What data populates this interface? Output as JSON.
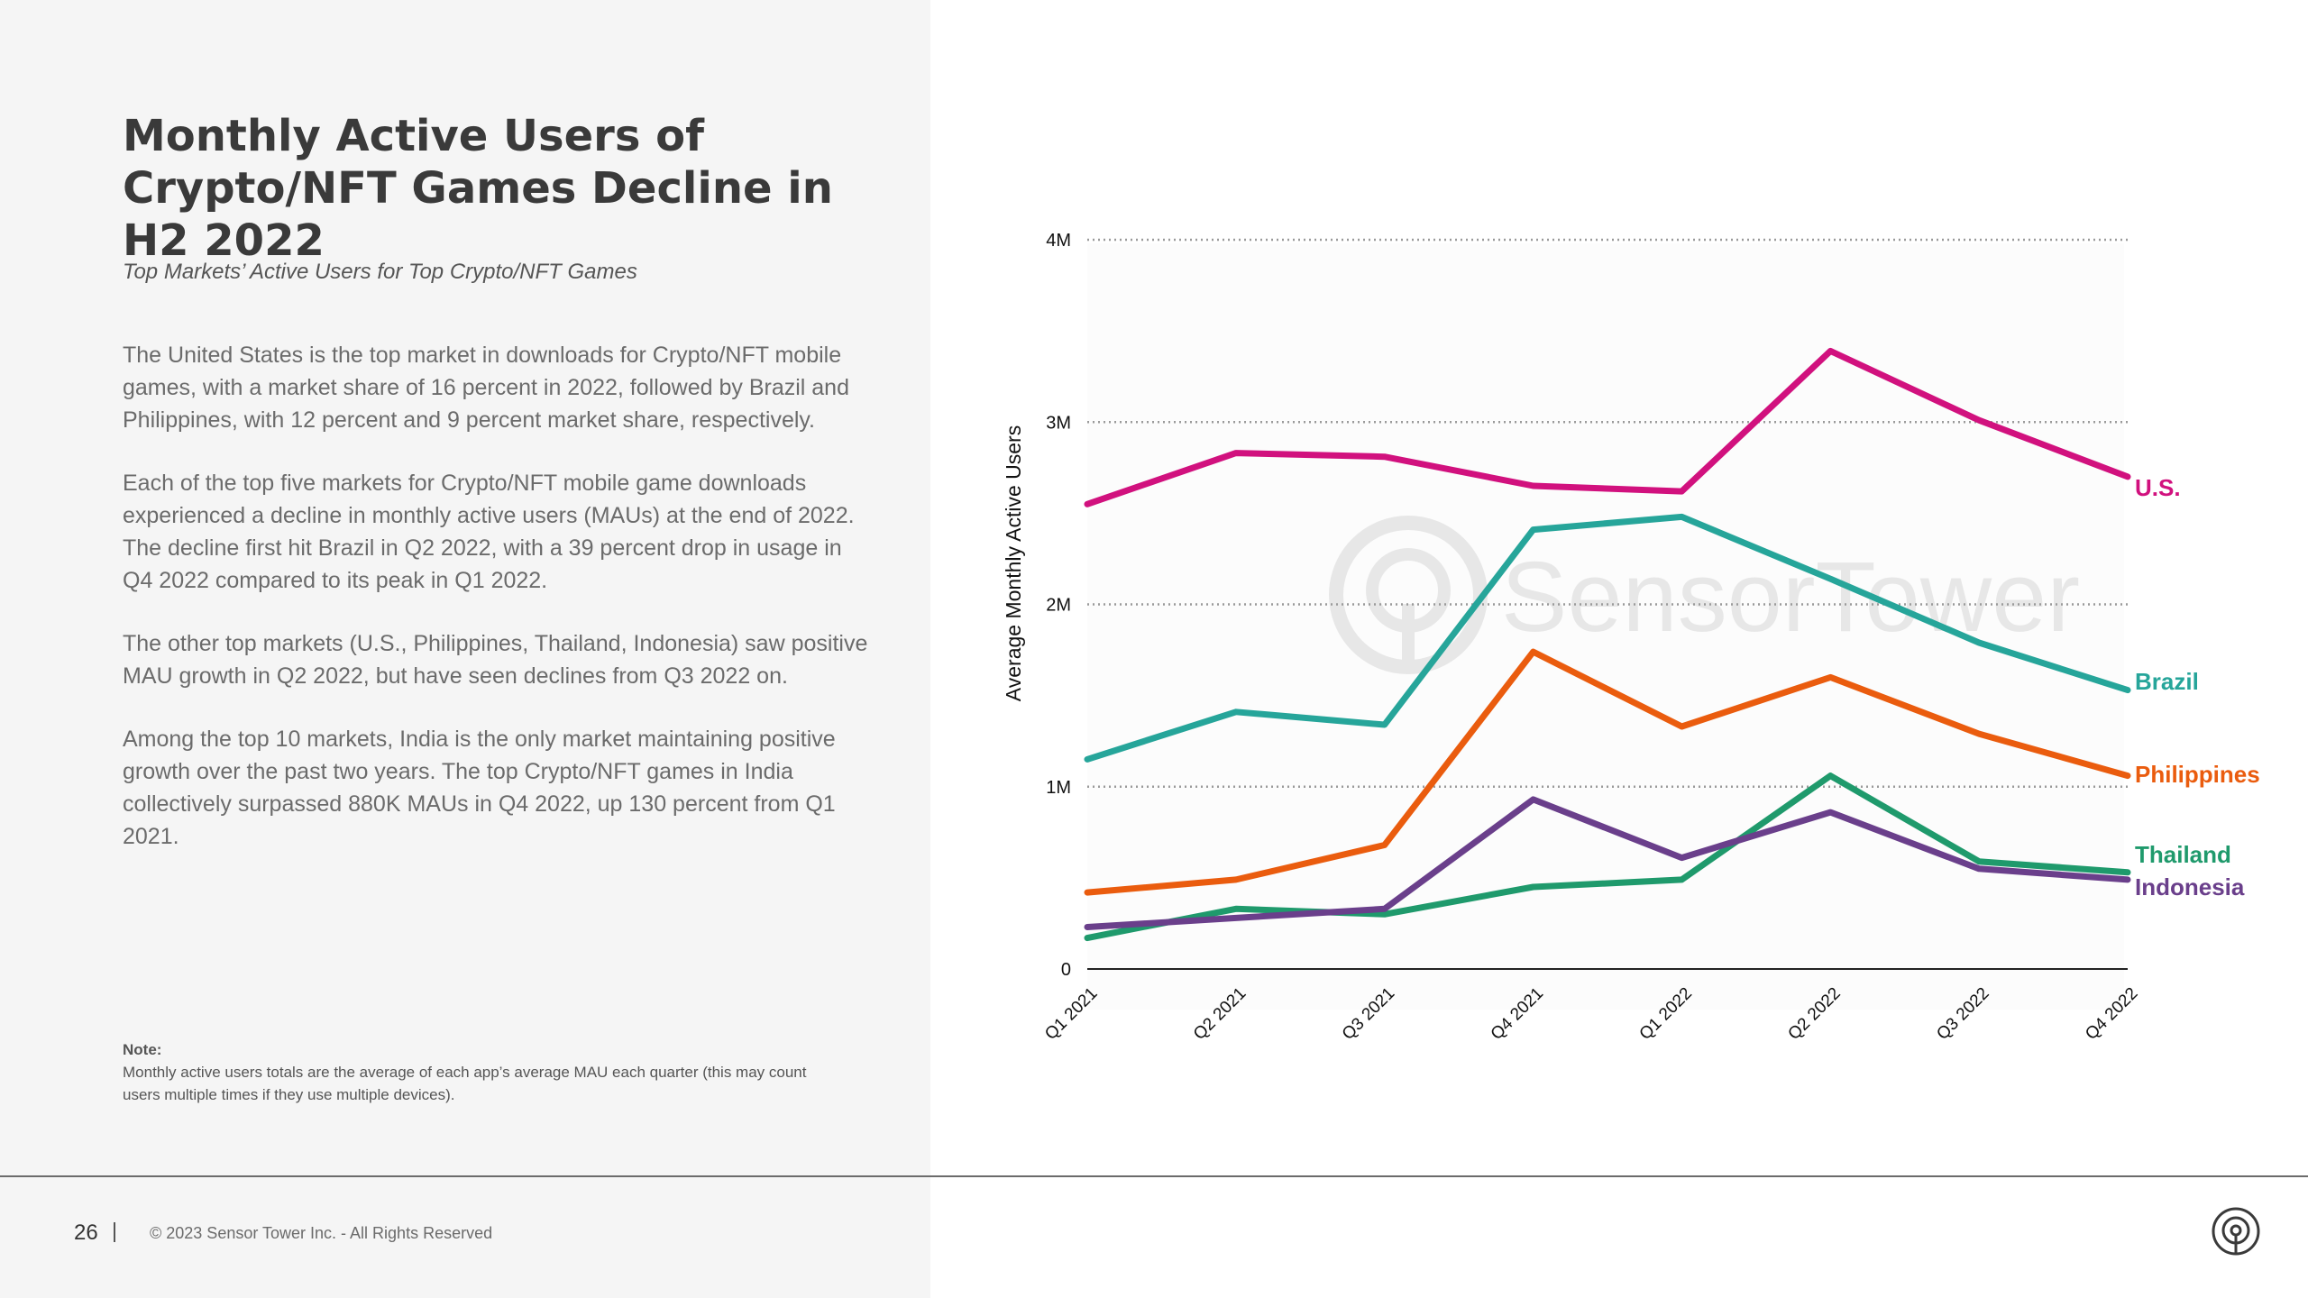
{
  "page": {
    "title": "Monthly Active Users of Crypto/NFT Games Decline in H2 2022",
    "subtitle": "Top Markets’ Active Users for Top Crypto/NFT Games",
    "paragraphs": [
      "The United States is the top market in downloads for Crypto/NFT mobile games, with a market share of 16 percent in 2022, followed by Brazil and Philippines, with 12 percent and 9 percent market share, respectively.",
      "Each of the top five markets for Crypto/NFT mobile game downloads experienced a decline in monthly active users (MAUs) at the end of 2022. The decline first hit Brazil in Q2 2022, with a 39 percent drop in usage in Q4 2022 compared to its peak in Q1 2022.",
      "The other top markets (U.S., Philippines, Thailand, Indonesia) saw positive MAU growth in Q2 2022, but have seen declines from Q3 2022 on.",
      "Among the top 10 markets, India is the only market maintaining positive growth over the past two years. The top Crypto/NFT games in India collectively surpassed 880K MAUs in Q4 2022, up 130 percent from Q1 2021."
    ],
    "note_label": "Note:",
    "note_text": "Monthly active users totals are the average of each app’s average MAU each quarter (this may count users multiple times if they use multiple devices).",
    "page_number": "26",
    "copyright": "© 2023 Sensor Tower Inc. - All Rights Reserved",
    "logo_icon": "sensor-tower-logo-icon"
  },
  "chart_data": {
    "type": "line",
    "title": "",
    "xlabel": "",
    "ylabel": "Average Monthly Active Users",
    "categories": [
      "Q1 2021",
      "Q2 2021",
      "Q3 2021",
      "Q4 2021",
      "Q1 2022",
      "Q2 2022",
      "Q3 2022",
      "Q4 2022"
    ],
    "ylim": [
      0,
      4000000
    ],
    "yticks": [
      0,
      1000000,
      2000000,
      3000000,
      4000000
    ],
    "ytick_labels": [
      "0",
      "1M",
      "2M",
      "3M",
      "4M"
    ],
    "grid": "dotted horizontal",
    "legend": "series labels at right end of lines",
    "watermark": "SensorTower",
    "series": [
      {
        "name": "U.S.",
        "color": "#d1117e",
        "values": [
          2550000,
          2830000,
          2810000,
          2650000,
          2620000,
          3390000,
          3010000,
          2700000
        ]
      },
      {
        "name": "Brazil",
        "color": "#26a59a",
        "values": [
          1150000,
          1410000,
          1340000,
          2410000,
          2480000,
          2140000,
          1790000,
          1530000
        ]
      },
      {
        "name": "Philippines",
        "color": "#ea5c0e",
        "values": [
          420000,
          490000,
          680000,
          1740000,
          1330000,
          1600000,
          1290000,
          1060000
        ]
      },
      {
        "name": "Thailand",
        "color": "#1f9a6c",
        "values": [
          170000,
          330000,
          300000,
          450000,
          490000,
          1060000,
          590000,
          530000
        ]
      },
      {
        "name": "Indonesia",
        "color": "#6a3f8b",
        "values": [
          230000,
          280000,
          330000,
          930000,
          610000,
          860000,
          550000,
          490000
        ]
      }
    ]
  }
}
